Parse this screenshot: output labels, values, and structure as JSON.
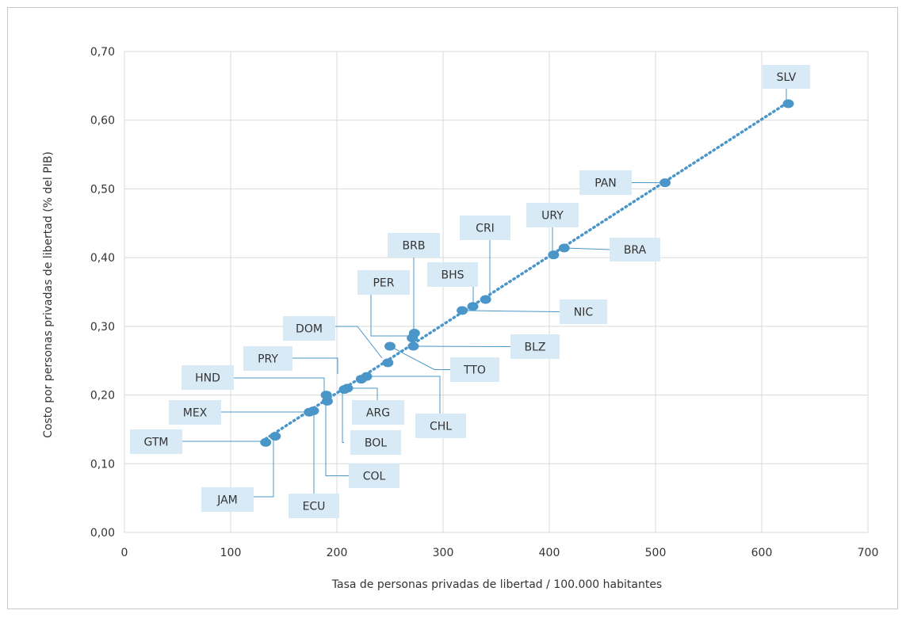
{
  "chart_data": {
    "type": "scatter",
    "title": "",
    "xlabel": "Tasa de personas privadas de libertad / 100.000 habitantes",
    "ylabel": "Costo por personas privadas de libertad (% del PIB)",
    "xlim": [
      0,
      700
    ],
    "ylim": [
      0,
      0.7
    ],
    "x_ticks": [
      "0",
      "100",
      "200",
      "300",
      "400",
      "500",
      "600",
      "700"
    ],
    "y_ticks": [
      "0,00",
      "0,10",
      "0,20",
      "0,30",
      "0,40",
      "0,50",
      "0,60",
      "0,70"
    ],
    "grid": true,
    "trendline": "dotted linear",
    "point_color": "#4a96c8",
    "label_bg": "#d9eaf7",
    "points": [
      {
        "label": "SLV",
        "x": 625,
        "y": 0.624
      },
      {
        "label": "PAN",
        "x": 509,
        "y": 0.509
      },
      {
        "label": "BRA",
        "x": 414,
        "y": 0.414
      },
      {
        "label": "URY",
        "x": 404,
        "y": 0.404
      },
      {
        "label": "CRI",
        "x": 340,
        "y": 0.339
      },
      {
        "label": "BHS",
        "x": 328,
        "y": 0.329
      },
      {
        "label": "NIC",
        "x": 318,
        "y": 0.323
      },
      {
        "label": "BRB",
        "x": 273,
        "y": 0.29
      },
      {
        "label": "PER",
        "x": 271,
        "y": 0.283
      },
      {
        "label": "BLZ",
        "x": 272,
        "y": 0.271
      },
      {
        "label": "TTO",
        "x": 250,
        "y": 0.271
      },
      {
        "label": "DOM",
        "x": 248,
        "y": 0.247
      },
      {
        "label": "CHL",
        "x": 228,
        "y": 0.227
      },
      {
        "label": "PRY",
        "x": 223,
        "y": 0.223
      },
      {
        "label": "ARG",
        "x": 210,
        "y": 0.21
      },
      {
        "label": "BOL",
        "x": 207,
        "y": 0.208
      },
      {
        "label": "HND",
        "x": 190,
        "y": 0.2
      },
      {
        "label": "COL",
        "x": 191,
        "y": 0.191
      },
      {
        "label": "ECU",
        "x": 178,
        "y": 0.177
      },
      {
        "label": "MEX",
        "x": 174,
        "y": 0.175
      },
      {
        "label": "JAM",
        "x": 142,
        "y": 0.14
      },
      {
        "label": "GTM",
        "x": 133,
        "y": 0.131
      }
    ]
  }
}
